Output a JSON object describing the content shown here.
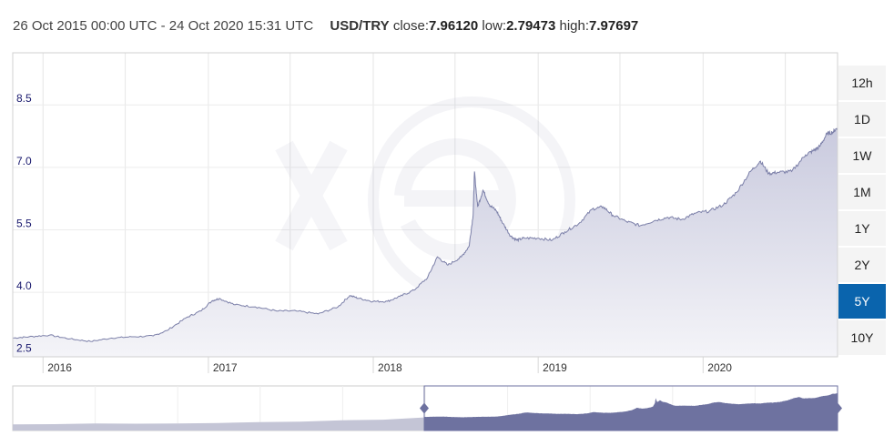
{
  "header": {
    "date_range": "26 Oct 2015 00:00 UTC - 24 Oct 2020 15:31 UTC",
    "pair": "USD/TRY",
    "close_label": "close:",
    "close_value": "7.96120",
    "low_label": "low:",
    "low_value": "2.79473",
    "high_label": "high:",
    "high_value": "7.97697"
  },
  "range_buttons": [
    {
      "label": "12h",
      "active": false
    },
    {
      "label": "1D",
      "active": false
    },
    {
      "label": "1W",
      "active": false
    },
    {
      "label": "1M",
      "active": false
    },
    {
      "label": "1Y",
      "active": false
    },
    {
      "label": "2Y",
      "active": false
    },
    {
      "label": "5Y",
      "active": true
    },
    {
      "label": "10Y",
      "active": false
    }
  ],
  "colors": {
    "line": "#7b7fa8",
    "area_top": "#c9cade",
    "area_bottom": "#ffffff",
    "navigator_fill": "#6e72a0",
    "navigator_unselected": "#c4c5d6",
    "active_button": "#0a64ad"
  },
  "chart_data": {
    "type": "area",
    "title": "USD/TRY",
    "xlabel": "",
    "ylabel": "",
    "x_ticks": [
      "2016",
      "2017",
      "2018",
      "2019",
      "2020"
    ],
    "y_ticks": [
      2.5,
      4.0,
      5.5,
      7.0,
      8.5
    ],
    "ylim": [
      2.45,
      9.75
    ],
    "grid": true,
    "series": [
      {
        "name": "USD/TRY",
        "x": [
          "2015-10-26",
          "2015-12-01",
          "2016-01-15",
          "2016-03-01",
          "2016-04-15",
          "2016-06-01",
          "2016-07-15",
          "2016-09-01",
          "2016-10-01",
          "2016-11-15",
          "2016-12-15",
          "2017-01-10",
          "2017-01-25",
          "2017-03-01",
          "2017-04-15",
          "2017-06-01",
          "2017-07-15",
          "2017-09-01",
          "2017-10-15",
          "2017-11-10",
          "2017-12-01",
          "2018-01-01",
          "2018-02-01",
          "2018-03-01",
          "2018-04-01",
          "2018-05-01",
          "2018-05-23",
          "2018-06-15",
          "2018-07-15",
          "2018-08-01",
          "2018-08-10",
          "2018-08-13",
          "2018-08-20",
          "2018-09-01",
          "2018-09-15",
          "2018-10-01",
          "2018-10-15",
          "2018-11-01",
          "2018-11-15",
          "2018-12-01",
          "2019-01-01",
          "2019-02-01",
          "2019-03-01",
          "2019-04-01",
          "2019-05-01",
          "2019-05-25",
          "2019-06-15",
          "2019-07-15",
          "2019-08-15",
          "2019-09-15",
          "2019-10-15",
          "2019-11-15",
          "2019-12-15",
          "2020-01-15",
          "2020-02-15",
          "2020-03-15",
          "2020-04-15",
          "2020-05-07",
          "2020-05-25",
          "2020-06-15",
          "2020-07-15",
          "2020-08-15",
          "2020-09-01",
          "2020-09-15",
          "2020-10-01",
          "2020-10-15",
          "2020-10-24"
        ],
        "values": [
          2.9,
          2.93,
          2.97,
          2.88,
          2.82,
          2.9,
          2.93,
          2.95,
          3.08,
          3.4,
          3.55,
          3.8,
          3.85,
          3.7,
          3.65,
          3.55,
          3.55,
          3.48,
          3.65,
          3.92,
          3.85,
          3.78,
          3.78,
          3.9,
          4.05,
          4.35,
          4.85,
          4.65,
          4.85,
          5.1,
          5.85,
          6.9,
          6.05,
          6.45,
          6.1,
          5.95,
          5.65,
          5.35,
          5.25,
          5.3,
          5.3,
          5.25,
          5.45,
          5.65,
          6.0,
          6.05,
          5.85,
          5.7,
          5.6,
          5.72,
          5.8,
          5.75,
          5.9,
          5.95,
          6.1,
          6.4,
          6.9,
          7.15,
          6.85,
          6.88,
          6.9,
          7.3,
          7.4,
          7.5,
          7.8,
          7.85,
          7.96
        ]
      }
    ]
  }
}
